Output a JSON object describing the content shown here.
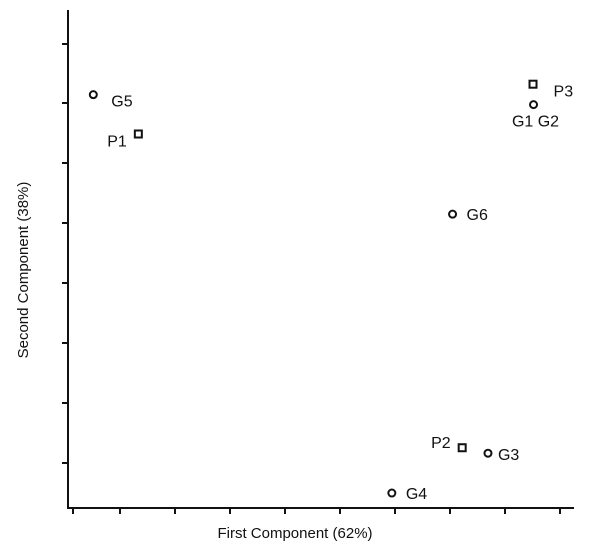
{
  "chart_data": {
    "type": "scatter",
    "xlabel": "First Component (62%)",
    "ylabel": "Second Component (38%)",
    "xlim": [
      0,
      10
    ],
    "ylim": [
      0,
      10
    ],
    "grid": false,
    "legend": "none",
    "series": [
      {
        "marker": "circle",
        "points": [
          {
            "label": "G1 G2",
            "x": 9.2,
            "y": 8.1
          },
          {
            "label": "G3",
            "x": 8.3,
            "y": 1.1
          },
          {
            "label": "G4",
            "x": 6.4,
            "y": 0.3
          },
          {
            "label": "G5",
            "x": 0.5,
            "y": 8.3
          },
          {
            "label": "G6",
            "x": 7.6,
            "y": 5.9
          }
        ]
      },
      {
        "marker": "square",
        "points": [
          {
            "label": "P1",
            "x": 1.4,
            "y": 7.5
          },
          {
            "label": "P2",
            "x": 7.8,
            "y": 1.2
          },
          {
            "label": "P3",
            "x": 9.2,
            "y": 8.5
          }
        ]
      }
    ]
  }
}
